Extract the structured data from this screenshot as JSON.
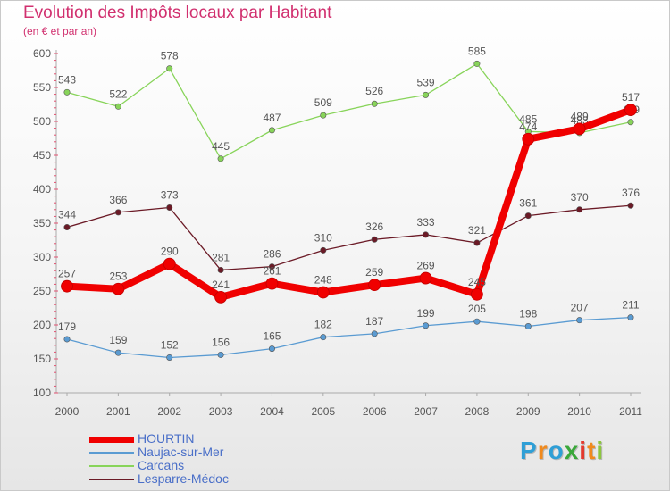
{
  "chart_data": {
    "type": "line",
    "title": "Evolution des Impôts locaux par Habitant",
    "subtitle": "(en € et par an)",
    "x": [
      "2000",
      "2001",
      "2002",
      "2003",
      "2004",
      "2005",
      "2006",
      "2007",
      "2008",
      "2009",
      "2010",
      "2011"
    ],
    "yticks": [
      "100",
      "150",
      "200",
      "250",
      "300",
      "350",
      "400",
      "450",
      "500",
      "550",
      "600"
    ],
    "ylim": [
      100,
      600
    ],
    "grid": false,
    "legend_position": "bottom-left",
    "series": [
      {
        "name": "Lesparre-Médoc",
        "color": "#6b1a26",
        "values": [
          344,
          366,
          373,
          281,
          286,
          310,
          326,
          333,
          321,
          361,
          370,
          376
        ],
        "labels": [
          "344",
          "366",
          "373",
          "281",
          "286",
          "310",
          "326",
          "333",
          "321",
          "361",
          "370",
          "376"
        ]
      },
      {
        "name": "Carcans",
        "color": "#88d45a",
        "values": [
          543,
          522,
          578,
          445,
          487,
          509,
          526,
          539,
          585,
          485,
          483,
          499
        ],
        "labels": [
          "543",
          "522",
          "578",
          "445",
          "487",
          "509",
          "526",
          "539",
          "585",
          "485",
          "483",
          "499"
        ]
      },
      {
        "name": "Naujac-sur-Mer",
        "color": "#5a9bd2",
        "values": [
          179,
          159,
          152,
          156,
          165,
          182,
          187,
          199,
          205,
          198,
          207,
          211
        ],
        "labels": [
          "179",
          "159",
          "152",
          "156",
          "165",
          "182",
          "187",
          "199",
          "205",
          "198",
          "207",
          "211"
        ]
      },
      {
        "name": "HOURTIN",
        "color": "#f00000",
        "values": [
          257,
          253,
          290,
          241,
          261,
          248,
          259,
          269,
          245,
          474,
          489,
          517
        ],
        "labels": [
          "257",
          "253",
          "290",
          "241",
          "261",
          "248",
          "259",
          "269",
          "245",
          "474",
          "489",
          "517"
        ]
      }
    ],
    "legend": [
      {
        "name": "HOURTIN",
        "color": "#f00000"
      },
      {
        "name": "Naujac-sur-Mer",
        "color": "#5a9bd2"
      },
      {
        "name": "Carcans",
        "color": "#88d45a"
      },
      {
        "name": "Lesparre-Médoc",
        "color": "#6b1a26"
      }
    ]
  },
  "logo": {
    "letters": [
      "P",
      "r",
      "o",
      "x",
      "i",
      "t",
      "i"
    ],
    "colors": [
      "#2f9fd6",
      "#f08a1e",
      "#2f9fd6",
      "#3aa83a",
      "#e33a2f",
      "#f08a1e",
      "#8cc63f"
    ]
  }
}
